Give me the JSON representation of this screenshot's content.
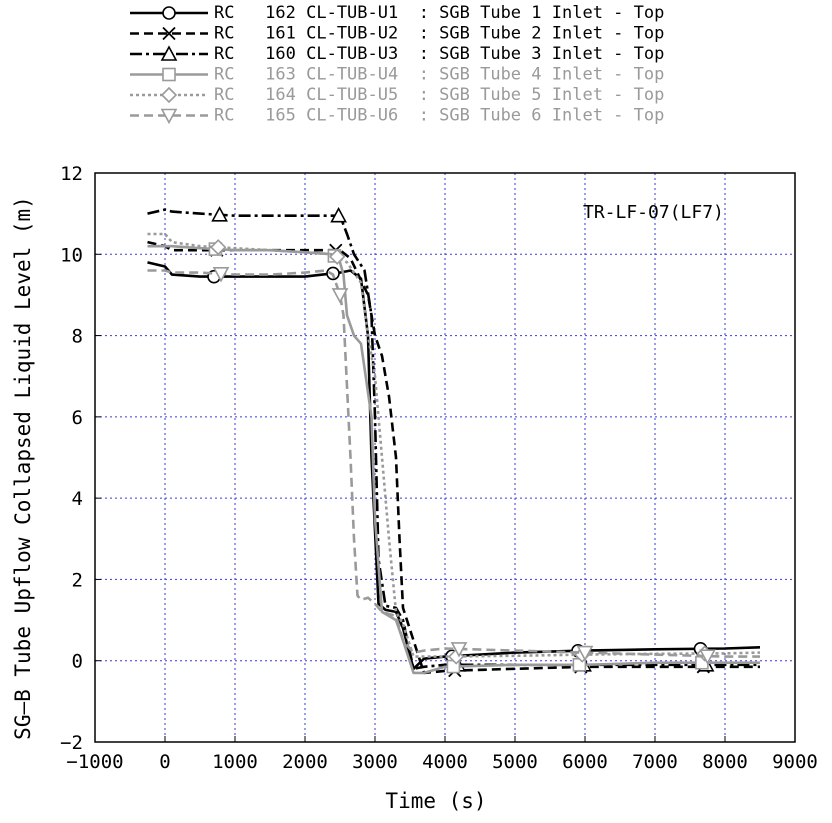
{
  "chart_data": {
    "type": "line",
    "xlabel": "Time  (s)",
    "ylabel": "SG–B Tube Upflow Collapsed Liquid Level  (m)",
    "xlim": [
      -1000,
      9000
    ],
    "ylim": [
      -2,
      12
    ],
    "xticks": [
      "−1000",
      "0",
      "1000",
      "2000",
      "3000",
      "4000",
      "5000",
      "6000",
      "7000",
      "8000",
      "9000"
    ],
    "yticks": [
      "−2",
      "0",
      "2",
      "4",
      "6",
      "8",
      "10",
      "12"
    ],
    "grid": true,
    "annotation": "TR-LF-07(LF7)",
    "legend_position": "top",
    "series": [
      {
        "name": "RC   162 CL-TUB-U1  : SGB Tube 1 Inlet - Top",
        "color": "#000000",
        "dash": "solid",
        "marker": "circle",
        "x": [
          -250,
          0,
          100,
          500,
          1000,
          1500,
          2000,
          2500,
          2650,
          2800,
          2900,
          2950,
          3050,
          3150,
          3300,
          3400,
          3550,
          3700,
          4000,
          5000,
          6000,
          7000,
          8000,
          8500
        ],
        "y": [
          9.8,
          9.7,
          9.5,
          9.45,
          9.45,
          9.45,
          9.45,
          9.55,
          9.6,
          9.4,
          8.0,
          5.0,
          1.4,
          1.25,
          1.2,
          0.8,
          -0.2,
          0.05,
          0.1,
          0.2,
          0.25,
          0.28,
          0.3,
          0.33
        ]
      },
      {
        "name": "RC   161 CL-TUB-U2  : SGB Tube 2 Inlet - Top",
        "color": "#000000",
        "dash": "dash",
        "marker": "x",
        "x": [
          -250,
          0,
          100,
          500,
          1000,
          1500,
          2000,
          2500,
          2650,
          2900,
          3000,
          3100,
          3200,
          3300,
          3350,
          3400,
          3550,
          3700,
          4000,
          5000,
          6000,
          7000,
          8000,
          8500
        ],
        "y": [
          10.3,
          10.2,
          10.1,
          10.1,
          10.1,
          10.1,
          10.1,
          10.1,
          9.9,
          9.0,
          8.0,
          7.5,
          6.5,
          5.0,
          3.0,
          1.3,
          0.5,
          -0.3,
          -0.25,
          -0.2,
          -0.15,
          -0.15,
          -0.15,
          -0.15
        ]
      },
      {
        "name": "RC   160 CL-TUB-U3  : SGB Tube 3 Inlet - Top",
        "color": "#000000",
        "dash": "dashdot",
        "marker": "triangle",
        "x": [
          -250,
          0,
          100,
          500,
          1000,
          1500,
          2000,
          2500,
          2600,
          2700,
          2850,
          2950,
          3000,
          3050,
          3150,
          3300,
          3400,
          3550,
          3700,
          4000,
          5000,
          6000,
          7000,
          8000,
          8500
        ],
        "y": [
          11.0,
          11.1,
          11.05,
          11.0,
          10.95,
          10.95,
          10.95,
          10.95,
          10.5,
          10.0,
          9.6,
          8.5,
          6.0,
          2.5,
          1.35,
          1.3,
          1.0,
          -0.2,
          -0.15,
          -0.1,
          -0.1,
          -0.1,
          -0.1,
          -0.1,
          -0.1
        ]
      },
      {
        "name": "RC   163 CL-TUB-U4  : SGB Tube 4 Inlet - Top",
        "color": "#9a9a9a",
        "dash": "solid",
        "marker": "square",
        "x": [
          -250,
          0,
          100,
          500,
          1000,
          1500,
          2000,
          2400,
          2500,
          2550,
          2600,
          2700,
          2800,
          2950,
          3000,
          3100,
          3300,
          3400,
          3550,
          3700,
          4000,
          5000,
          6000,
          7000,
          8000,
          8500
        ],
        "y": [
          10.2,
          10.2,
          10.2,
          10.15,
          10.1,
          10.1,
          10.05,
          10.0,
          9.8,
          9.5,
          8.5,
          8.0,
          7.8,
          6.0,
          3.5,
          1.2,
          1.0,
          0.5,
          -0.3,
          -0.3,
          -0.15,
          -0.1,
          -0.1,
          -0.05,
          -0.05,
          -0.05
        ]
      },
      {
        "name": "RC   164 CL-TUB-U5  : SGB Tube 5 Inlet - Top",
        "color": "#9a9a9a",
        "dash": "dot",
        "marker": "diamond",
        "x": [
          -250,
          0,
          100,
          500,
          1000,
          1500,
          2000,
          2400,
          2600,
          2800,
          2900,
          3000,
          3050,
          3100,
          3200,
          3300,
          3400,
          3550,
          3700,
          4000,
          5000,
          6000,
          7000,
          8000,
          8500
        ],
        "y": [
          10.5,
          10.5,
          10.3,
          10.2,
          10.15,
          10.1,
          10.05,
          10.0,
          9.8,
          9.3,
          8.0,
          7.0,
          6.0,
          5.0,
          3.0,
          1.2,
          0.9,
          0.1,
          0.1,
          0.1,
          0.12,
          0.15,
          0.17,
          0.18,
          0.2
        ]
      },
      {
        "name": "RC   165 CL-TUB-U6  : SGB Tube 6 Inlet - Top",
        "color": "#9a9a9a",
        "dash": "dash",
        "marker": "invtriangle",
        "x": [
          -250,
          0,
          100,
          500,
          1000,
          1500,
          2000,
          2300,
          2400,
          2500,
          2550,
          2650,
          2700,
          2750,
          2800,
          2900,
          3000,
          3100,
          3300,
          3400,
          3550,
          3700,
          4000,
          5000,
          6000,
          7000,
          8000,
          8500
        ],
        "y": [
          9.6,
          9.6,
          9.55,
          9.55,
          9.5,
          9.5,
          9.55,
          9.6,
          9.5,
          9.0,
          8.5,
          5.0,
          3.0,
          1.6,
          1.5,
          1.55,
          1.4,
          1.2,
          1.1,
          0.5,
          0.2,
          0.25,
          0.3,
          0.25,
          0.2,
          0.15,
          0.1,
          0.1
        ]
      }
    ]
  }
}
